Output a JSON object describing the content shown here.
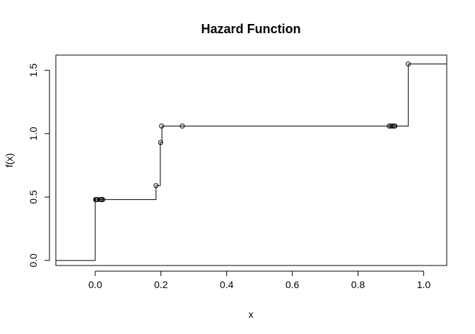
{
  "chart_data": {
    "type": "line",
    "title": "Hazard Function",
    "xlabel": "x",
    "ylabel": "f(x)",
    "xlim": [
      -0.12,
      1.07
    ],
    "ylim": [
      -0.04,
      1.62
    ],
    "xticks": [
      0.0,
      0.2,
      0.4,
      0.6,
      0.8,
      1.0
    ],
    "xtick_labels": [
      "0.0",
      "0.2",
      "0.4",
      "0.6",
      "0.8",
      "1.0"
    ],
    "yticks": [
      0.0,
      0.5,
      1.0,
      1.5
    ],
    "ytick_labels": [
      "0.0",
      "0.5",
      "1.0",
      "1.5"
    ],
    "grid": false,
    "legend": "none",
    "line_color": "#000000",
    "step": {
      "x": [
        -0.12,
        0.0,
        0.0,
        0.185,
        0.185,
        0.198,
        0.198,
        0.203,
        0.203,
        0.953,
        0.953,
        1.07
      ],
      "y": [
        0.0,
        0.0,
        0.48,
        0.48,
        0.59,
        0.59,
        0.93,
        0.93,
        1.06,
        1.06,
        1.55,
        1.55
      ]
    },
    "points": {
      "x": [
        0.001,
        0.004,
        0.006,
        0.016,
        0.019,
        0.023,
        0.185,
        0.199,
        0.202,
        0.265,
        0.895,
        0.9,
        0.905,
        0.91,
        0.912,
        0.953
      ],
      "y": [
        0.48,
        0.48,
        0.48,
        0.48,
        0.48,
        0.48,
        0.59,
        0.93,
        1.06,
        1.06,
        1.06,
        1.06,
        1.06,
        1.06,
        1.06,
        1.55
      ]
    }
  }
}
